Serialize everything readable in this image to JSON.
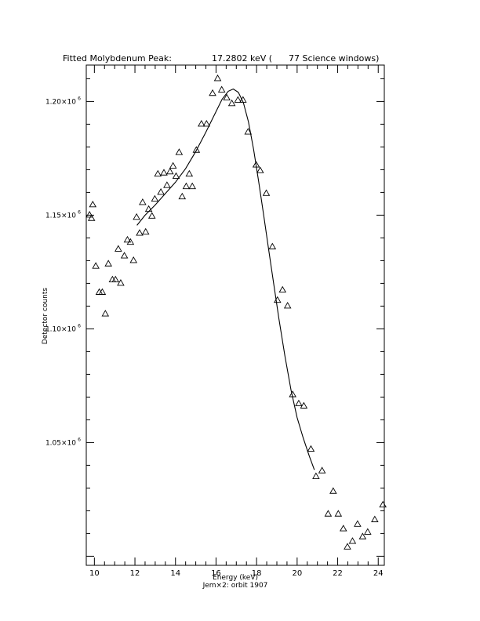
{
  "header": {
    "title_left": "Fitted Molybdenum Peak:",
    "title_right": "17.2802 keV (      77 Science windows)"
  },
  "chart_data": {
    "type": "scatter",
    "title": "Fitted Molybdenum Peak:      17.2802 keV (      77 Science windows)",
    "xlabel": "Energy (keV)",
    "subtitle": "Jem×2: orbit 1907",
    "ylabel": "Detector counts",
    "xlim": [
      9.6,
      24.3
    ],
    "ylim": [
      996000,
      1216000
    ],
    "xticks": [
      10,
      12,
      14,
      16,
      18,
      20,
      22,
      24
    ],
    "xtick_labels": [
      "10",
      "12",
      "14",
      "16",
      "18",
      "20",
      "22",
      "24"
    ],
    "yticks": [
      1050000,
      1100000,
      1150000,
      1200000
    ],
    "ytick_labels": [
      {
        "mantissa": "1.05×10",
        "exp": "6"
      },
      {
        "mantissa": "1.10×10",
        "exp": "6"
      },
      {
        "mantissa": "1.15×10",
        "exp": "6"
      },
      {
        "mantissa": "1.20×10",
        "exp": "6"
      }
    ],
    "grid": false,
    "series": [
      {
        "marker": "triangle",
        "points": [
          [
            9.76,
            1150000
          ],
          [
            9.86,
            1148500
          ],
          [
            9.92,
            1154500
          ],
          [
            10.07,
            1127500
          ],
          [
            10.24,
            1116000
          ],
          [
            10.39,
            1116000
          ],
          [
            10.54,
            1106500
          ],
          [
            10.69,
            1128500
          ],
          [
            10.89,
            1121500
          ],
          [
            11.04,
            1121500
          ],
          [
            11.18,
            1135000
          ],
          [
            11.3,
            1120000
          ],
          [
            11.48,
            1132000
          ],
          [
            11.63,
            1139000
          ],
          [
            11.78,
            1138000
          ],
          [
            11.93,
            1130000
          ],
          [
            12.08,
            1149000
          ],
          [
            12.23,
            1142000
          ],
          [
            12.38,
            1155500
          ],
          [
            12.53,
            1142500
          ],
          [
            12.68,
            1152500
          ],
          [
            12.84,
            1149500
          ],
          [
            12.98,
            1157000
          ],
          [
            13.13,
            1168000
          ],
          [
            13.28,
            1160000
          ],
          [
            13.43,
            1168500
          ],
          [
            13.58,
            1163000
          ],
          [
            13.73,
            1169000
          ],
          [
            13.88,
            1171500
          ],
          [
            14.03,
            1167000
          ],
          [
            14.18,
            1177500
          ],
          [
            14.33,
            1158000
          ],
          [
            14.53,
            1162500
          ],
          [
            14.68,
            1168000
          ],
          [
            14.83,
            1162500
          ],
          [
            15.03,
            1178500
          ],
          [
            15.28,
            1190000
          ],
          [
            15.53,
            1190000
          ],
          [
            15.83,
            1203500
          ],
          [
            16.08,
            1210000
          ],
          [
            16.28,
            1205000
          ],
          [
            16.53,
            1201500
          ],
          [
            16.78,
            1199000
          ],
          [
            17.08,
            1200500
          ],
          [
            17.33,
            1200500
          ],
          [
            17.58,
            1186500
          ],
          [
            17.98,
            1172000
          ],
          [
            18.18,
            1169500
          ],
          [
            18.48,
            1159500
          ],
          [
            18.78,
            1136000
          ],
          [
            19.03,
            1112500
          ],
          [
            19.28,
            1117000
          ],
          [
            19.53,
            1110000
          ],
          [
            19.78,
            1071000
          ],
          [
            20.08,
            1067000
          ],
          [
            20.33,
            1066000
          ],
          [
            20.68,
            1047000
          ],
          [
            20.93,
            1035000
          ],
          [
            21.23,
            1037500
          ],
          [
            21.53,
            1018500
          ],
          [
            21.78,
            1028500
          ],
          [
            22.03,
            1018500
          ],
          [
            22.28,
            1012000
          ],
          [
            22.48,
            1004000
          ],
          [
            22.73,
            1006500
          ],
          [
            22.98,
            1014000
          ],
          [
            23.23,
            1008500
          ],
          [
            23.48,
            1010500
          ],
          [
            23.83,
            1016000
          ],
          [
            24.23,
            1022500
          ]
        ]
      },
      {
        "marker": "line",
        "points": [
          [
            12.1,
            1145500
          ],
          [
            12.5,
            1150000
          ],
          [
            13.0,
            1154500
          ],
          [
            13.5,
            1159500
          ],
          [
            14.0,
            1164500
          ],
          [
            14.5,
            1170500
          ],
          [
            15.0,
            1178000
          ],
          [
            15.5,
            1186500
          ],
          [
            16.0,
            1195500
          ],
          [
            16.3,
            1201000
          ],
          [
            16.6,
            1204500
          ],
          [
            16.85,
            1205500
          ],
          [
            17.1,
            1204000
          ],
          [
            17.35,
            1199500
          ],
          [
            17.6,
            1191000
          ],
          [
            17.85,
            1179000
          ],
          [
            18.1,
            1165000
          ],
          [
            18.35,
            1150000
          ],
          [
            18.6,
            1134500
          ],
          [
            18.85,
            1119500
          ],
          [
            19.1,
            1104500
          ],
          [
            19.4,
            1088000
          ],
          [
            19.7,
            1073000
          ],
          [
            20.0,
            1061000
          ],
          [
            20.3,
            1052000
          ],
          [
            20.6,
            1044000
          ],
          [
            20.85,
            1038000
          ]
        ]
      }
    ]
  }
}
